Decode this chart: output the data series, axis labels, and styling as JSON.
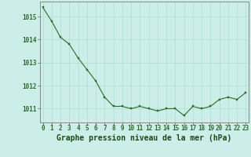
{
  "x": [
    0,
    1,
    2,
    3,
    4,
    5,
    6,
    7,
    8,
    9,
    10,
    11,
    12,
    13,
    14,
    15,
    16,
    17,
    18,
    19,
    20,
    21,
    22,
    23
  ],
  "y": [
    1015.4,
    1014.8,
    1014.1,
    1013.8,
    1013.2,
    1012.7,
    1012.2,
    1011.5,
    1011.1,
    1011.1,
    1011.0,
    1011.1,
    1011.0,
    1010.9,
    1011.0,
    1011.0,
    1010.7,
    1011.1,
    1011.0,
    1011.1,
    1011.4,
    1011.5,
    1011.4,
    1011.7
  ],
  "line_color": "#2d6a2d",
  "marker_color": "#2d6a2d",
  "bg_color": "#cceee8",
  "grid_color": "#aaddcc",
  "xlabel": "Graphe pression niveau de la mer (hPa)",
  "xlabel_color": "#1a4a1a",
  "yticks": [
    1011,
    1012,
    1013,
    1014,
    1015
  ],
  "xticks": [
    0,
    1,
    2,
    3,
    4,
    5,
    6,
    7,
    8,
    9,
    10,
    11,
    12,
    13,
    14,
    15,
    16,
    17,
    18,
    19,
    20,
    21,
    22,
    23
  ],
  "ylim": [
    1010.4,
    1015.65
  ],
  "xlim": [
    -0.3,
    23.3
  ],
  "tick_fontsize": 5.5,
  "xlabel_fontsize": 7.0,
  "spine_color": "#888888",
  "grid_minor_color": "#c8e8e0"
}
